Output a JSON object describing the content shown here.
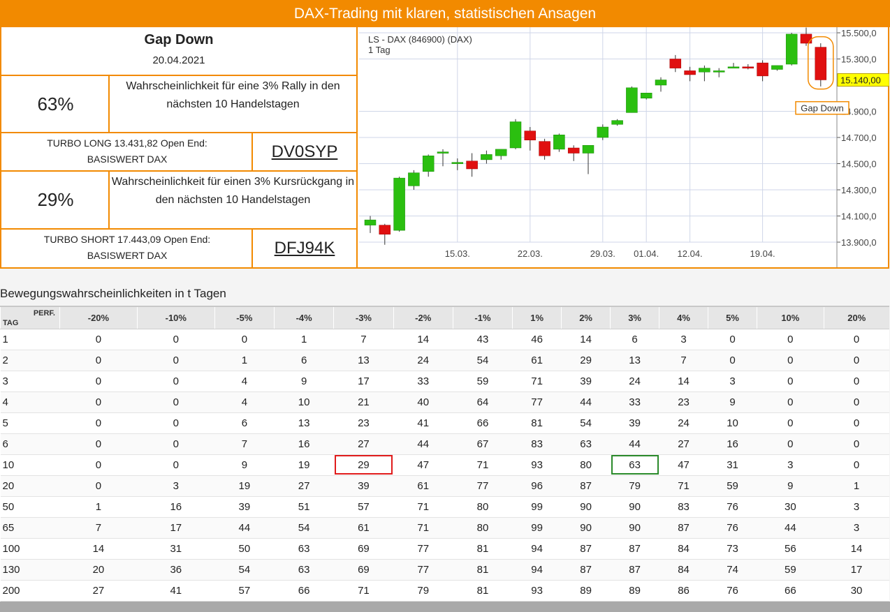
{
  "banner": {
    "title": "DAX-Trading mit klaren, statistischen Ansagen"
  },
  "setup": {
    "name": "Gap Down",
    "date": "20.04.2021"
  },
  "long": {
    "pct": "63%",
    "desc": "Wahrscheinlichkeit für eine 3% Rally in den nächsten 10 Handelstagen",
    "turbo_line1": "TURBO LONG 13.431,82 Open End:",
    "turbo_line2": "BASISWERT DAX",
    "code": "DV0SYP"
  },
  "short": {
    "pct": "29%",
    "desc": "Wahrscheinlichkeit für einen 3% Kursrückgang in den nächsten 10 Handelstagen",
    "turbo_line1": "TURBO SHORT 17.443,09 Open End:",
    "turbo_line2": "BASISWERT DAX",
    "code": "DFJ94K"
  },
  "colors": {
    "accent": "#f28a00",
    "up": "#2bbf10",
    "down": "#e01010",
    "price_tag": "#ffff00"
  },
  "chart_data": {
    "type": "candlestick",
    "title": "LS - DAX (846900) (DAX)",
    "subtitle": "1 Tag",
    "ylim": [
      13800,
      15550
    ],
    "yticks": [
      13900,
      14100,
      14300,
      14500,
      14700,
      14900,
      15300,
      15500
    ],
    "ytick_labels": [
      "13.900,0",
      "14.100,0",
      "14.300,0",
      "14.500,0",
      "14.700,0",
      "14.900,0",
      "15.300,0",
      "15.500,0"
    ],
    "last_price_label": "15.140,00",
    "last_price": 15140,
    "annotation": "Gap Down",
    "xtick_labels": [
      {
        "index": 6,
        "label": "15.03."
      },
      {
        "index": 11,
        "label": "22.03."
      },
      {
        "index": 16,
        "label": "29.03."
      },
      {
        "index": 19,
        "label": "01.04."
      },
      {
        "index": 22,
        "label": "12.04."
      },
      {
        "index": 27,
        "label": "19.04."
      }
    ],
    "ohlc": [
      [
        14030,
        14100,
        13970,
        14070
      ],
      [
        14030,
        14040,
        13880,
        13960
      ],
      [
        13990,
        14400,
        13980,
        14390
      ],
      [
        14330,
        14450,
        14300,
        14430
      ],
      [
        14440,
        14570,
        14400,
        14560
      ],
      [
        14590,
        14610,
        14480,
        14590
      ],
      [
        14510,
        14540,
        14450,
        14510
      ],
      [
        14520,
        14580,
        14400,
        14460
      ],
      [
        14530,
        14600,
        14500,
        14570
      ],
      [
        14560,
        14610,
        14530,
        14610
      ],
      [
        14620,
        14840,
        14610,
        14820
      ],
      [
        14750,
        14780,
        14600,
        14680
      ],
      [
        14670,
        14690,
        14530,
        14560
      ],
      [
        14610,
        14730,
        14590,
        14720
      ],
      [
        14620,
        14640,
        14520,
        14580
      ],
      [
        14580,
        14630,
        14420,
        14640
      ],
      [
        14700,
        14800,
        14680,
        14780
      ],
      [
        14800,
        14840,
        14790,
        14830
      ],
      [
        14890,
        15090,
        14890,
        15080
      ],
      [
        15000,
        15040,
        14990,
        15040
      ],
      [
        15100,
        15160,
        15050,
        15140
      ],
      [
        15300,
        15330,
        15200,
        15230
      ],
      [
        15210,
        15240,
        15130,
        15180
      ],
      [
        15200,
        15250,
        15130,
        15230
      ],
      [
        15200,
        15230,
        15160,
        15210
      ],
      [
        15240,
        15270,
        15230,
        15240
      ],
      [
        15240,
        15260,
        15220,
        15230
      ],
      [
        15270,
        15290,
        15130,
        15170
      ],
      [
        15220,
        15250,
        15210,
        15250
      ],
      [
        15260,
        15500,
        15250,
        15490
      ],
      [
        15490,
        15540,
        15400,
        15420
      ],
      [
        15390,
        15420,
        15090,
        15140
      ]
    ]
  },
  "table": {
    "title": "Bewegungswahrscheinlichkeiten in t Tagen",
    "corner_perf": "PERF.",
    "corner_tag": "TAG",
    "columns": [
      "-20%",
      "-10%",
      "-5%",
      "-4%",
      "-3%",
      "-2%",
      "-1%",
      "1%",
      "2%",
      "3%",
      "4%",
      "5%",
      "10%",
      "20%"
    ],
    "highlight_short": {
      "row": 6,
      "col": 4
    },
    "highlight_long": {
      "row": 6,
      "col": 9
    },
    "rows": [
      {
        "day": "1",
        "values": [
          "0",
          "0",
          "0",
          "1",
          "7",
          "14",
          "43",
          "46",
          "14",
          "6",
          "3",
          "0",
          "0",
          "0"
        ]
      },
      {
        "day": "2",
        "values": [
          "0",
          "0",
          "1",
          "6",
          "13",
          "24",
          "54",
          "61",
          "29",
          "13",
          "7",
          "0",
          "0",
          "0"
        ]
      },
      {
        "day": "3",
        "values": [
          "0",
          "0",
          "4",
          "9",
          "17",
          "33",
          "59",
          "71",
          "39",
          "24",
          "14",
          "3",
          "0",
          "0"
        ]
      },
      {
        "day": "4",
        "values": [
          "0",
          "0",
          "4",
          "10",
          "21",
          "40",
          "64",
          "77",
          "44",
          "33",
          "23",
          "9",
          "0",
          "0"
        ]
      },
      {
        "day": "5",
        "values": [
          "0",
          "0",
          "6",
          "13",
          "23",
          "41",
          "66",
          "81",
          "54",
          "39",
          "24",
          "10",
          "0",
          "0"
        ]
      },
      {
        "day": "6",
        "values": [
          "0",
          "0",
          "7",
          "16",
          "27",
          "44",
          "67",
          "83",
          "63",
          "44",
          "27",
          "16",
          "0",
          "0"
        ]
      },
      {
        "day": "10",
        "values": [
          "0",
          "0",
          "9",
          "19",
          "29",
          "47",
          "71",
          "93",
          "80",
          "63",
          "47",
          "31",
          "3",
          "0"
        ]
      },
      {
        "day": "20",
        "values": [
          "0",
          "3",
          "19",
          "27",
          "39",
          "61",
          "77",
          "96",
          "87",
          "79",
          "71",
          "59",
          "9",
          "1"
        ]
      },
      {
        "day": "50",
        "values": [
          "1",
          "16",
          "39",
          "51",
          "57",
          "71",
          "80",
          "99",
          "90",
          "90",
          "83",
          "76",
          "30",
          "3"
        ]
      },
      {
        "day": "65",
        "values": [
          "7",
          "17",
          "44",
          "54",
          "61",
          "71",
          "80",
          "99",
          "90",
          "90",
          "87",
          "76",
          "44",
          "3"
        ]
      },
      {
        "day": "100",
        "values": [
          "14",
          "31",
          "50",
          "63",
          "69",
          "77",
          "81",
          "94",
          "87",
          "87",
          "84",
          "73",
          "56",
          "14"
        ]
      },
      {
        "day": "130",
        "values": [
          "20",
          "36",
          "54",
          "63",
          "69",
          "77",
          "81",
          "94",
          "87",
          "87",
          "84",
          "74",
          "59",
          "17"
        ]
      },
      {
        "day": "200",
        "values": [
          "27",
          "41",
          "57",
          "66",
          "71",
          "79",
          "81",
          "93",
          "89",
          "89",
          "86",
          "76",
          "66",
          "30"
        ]
      }
    ]
  }
}
